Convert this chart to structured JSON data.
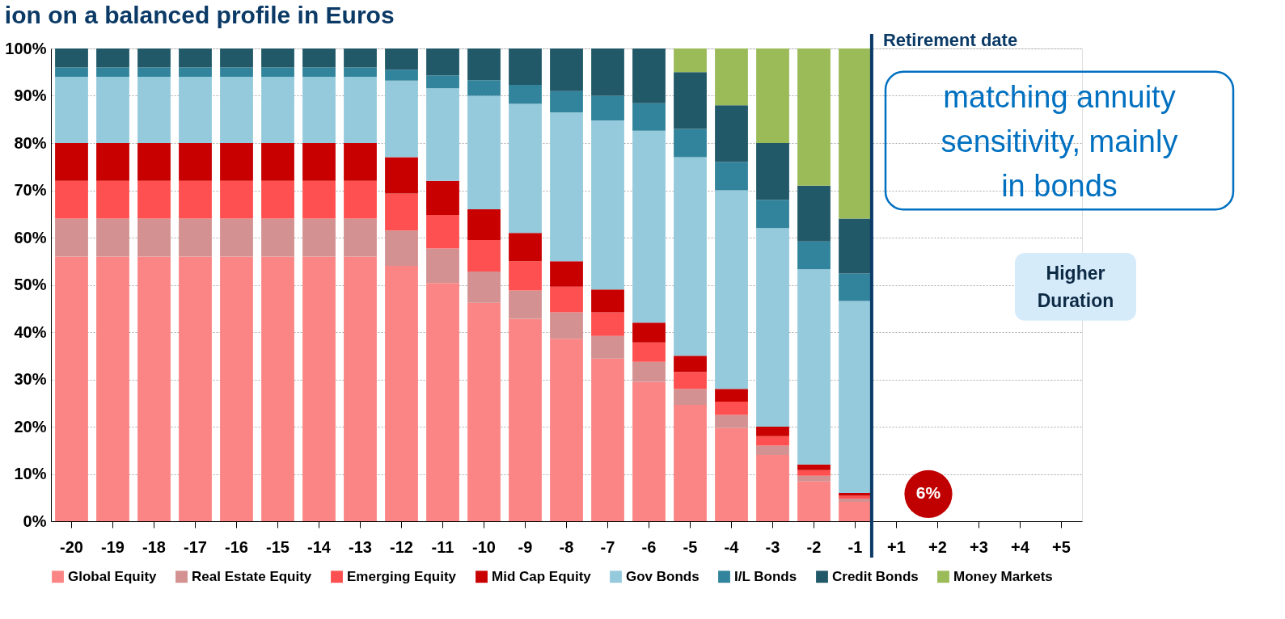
{
  "chart_data": {
    "type": "bar",
    "stacked": true,
    "title": "ion on a balanced profile in Euros",
    "categories": [
      "-20",
      "-19",
      "-18",
      "-17",
      "-16",
      "-15",
      "-14",
      "-13",
      "-12",
      "-11",
      "-10",
      "-9",
      "-8",
      "-7",
      "-6",
      "-5",
      "-4",
      "-3",
      "-2",
      "-1",
      "+1",
      "+2",
      "+3",
      "+4",
      "+5"
    ],
    "series": [
      {
        "name": "Global Equity",
        "color": "#fb8585",
        "values": [
          56,
          56,
          56,
          56,
          56,
          56,
          56,
          56,
          54,
          50.4,
          46.2,
          42.8,
          38.6,
          34.4,
          29.5,
          24.6,
          19.7,
          14,
          8.4,
          4.1,
          null,
          null,
          null,
          null,
          null
        ]
      },
      {
        "name": "Real Estate Equity",
        "color": "#d39191",
        "values": [
          8,
          8,
          8,
          8,
          8,
          8,
          8,
          8,
          7.5,
          7.3,
          6.6,
          6,
          5.6,
          4.8,
          4.2,
          3.4,
          2.8,
          2,
          1.2,
          0.7,
          null,
          null,
          null,
          null,
          null
        ]
      },
      {
        "name": "Emerging Equity",
        "color": "#fe5050",
        "values": [
          8,
          8,
          8,
          8,
          8,
          8,
          8,
          8,
          7.8,
          7.1,
          6.7,
          6.2,
          5.4,
          5,
          4.1,
          3.6,
          2.8,
          2,
          1.2,
          0.6,
          null,
          null,
          null,
          null,
          null
        ]
      },
      {
        "name": "Mid Cap Equity",
        "color": "#c80000",
        "values": [
          8,
          8,
          8,
          8,
          8,
          8,
          8,
          8,
          7.7,
          7.2,
          6.5,
          6,
          5.4,
          4.8,
          4.2,
          3.4,
          2.7,
          2,
          1.2,
          0.6,
          null,
          null,
          null,
          null,
          null
        ]
      },
      {
        "name": "Gov Bonds",
        "color": "#95cadc",
        "values": [
          14,
          14,
          14,
          14,
          14,
          14,
          14,
          14,
          16.2,
          19.6,
          24,
          27.3,
          31.5,
          35.8,
          40.6,
          42,
          42,
          42,
          41.3,
          40.6,
          null,
          null,
          null,
          null,
          null
        ]
      },
      {
        "name": "I/L Bonds",
        "color": "#31849b",
        "values": [
          2,
          2,
          2,
          2,
          2,
          2,
          2,
          2,
          2.3,
          2.7,
          3.3,
          4,
          4.5,
          5.2,
          5.8,
          6,
          6,
          6,
          5.9,
          5.8,
          null,
          null,
          null,
          null,
          null
        ]
      },
      {
        "name": "Credit Bonds",
        "color": "#215968",
        "values": [
          4,
          4,
          4,
          4,
          4,
          4,
          4,
          4,
          4.5,
          5.7,
          6.7,
          7.7,
          9,
          10,
          11.6,
          12,
          12,
          12,
          11.8,
          11.6,
          null,
          null,
          null,
          null,
          null
        ]
      },
      {
        "name": "Money Markets",
        "color": "#9bbb59",
        "values": [
          0,
          0,
          0,
          0,
          0,
          0,
          0,
          0,
          0,
          0,
          0,
          0,
          0,
          0,
          0,
          5,
          12,
          20,
          29,
          36,
          null,
          null,
          null,
          null,
          null
        ]
      }
    ],
    "ylim": [
      0,
      100
    ],
    "yticks": [
      {
        "value": 0,
        "label": "0%"
      },
      {
        "value": 10,
        "label": "10%"
      },
      {
        "value": 20,
        "label": "20%"
      },
      {
        "value": 30,
        "label": "30%"
      },
      {
        "value": 40,
        "label": "40%"
      },
      {
        "value": 50,
        "label": "50%"
      },
      {
        "value": 60,
        "label": "60%"
      },
      {
        "value": 70,
        "label": "70%"
      },
      {
        "value": 80,
        "label": "80%"
      },
      {
        "value": 90,
        "label": "90%"
      },
      {
        "value": 100,
        "label": "100%"
      }
    ],
    "grid": "y",
    "legend": "bottom",
    "ref_lines": [
      {
        "axis": "x",
        "value": "-1",
        "label": "Retirement date",
        "color": "#0b3a66"
      }
    ],
    "annotations": [
      "matching annuity sensitivity, mainly in bonds",
      "Higher Duration",
      "6%"
    ]
  }
}
